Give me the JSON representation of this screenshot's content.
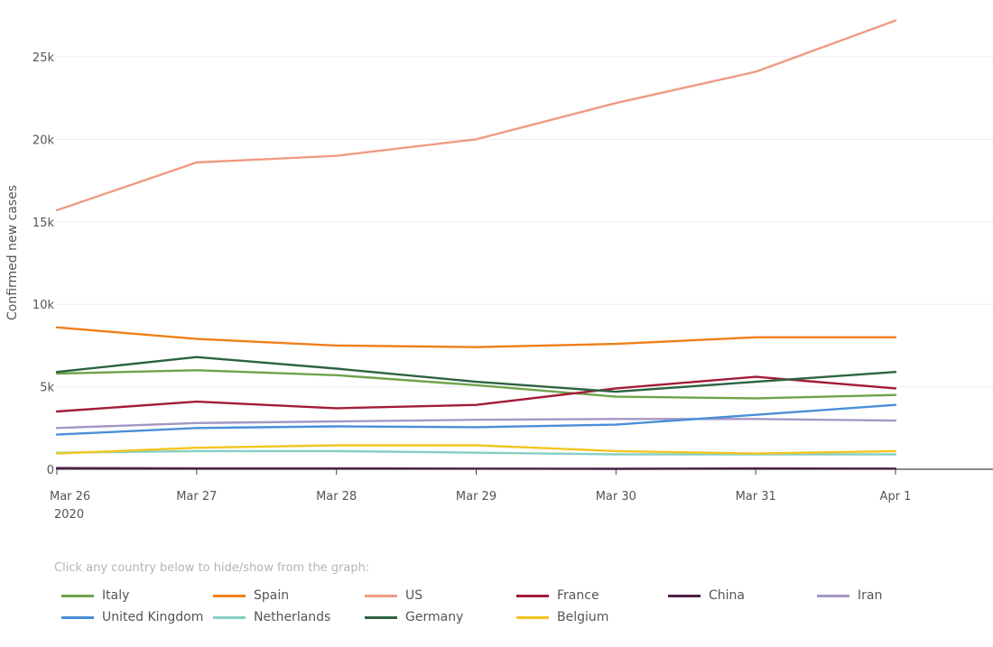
{
  "legend_hint": "Click any country below to hide/show from the graph:",
  "chart_data": {
    "type": "line",
    "title": "",
    "xlabel": "",
    "ylabel": "Confirmed new cases",
    "x": [
      "Mar 26",
      "Mar 27",
      "Mar 28",
      "Mar 29",
      "Mar 30",
      "Mar 31",
      "Apr 1"
    ],
    "x_year_label": "2020",
    "y_ticks": [
      0,
      5000,
      10000,
      15000,
      20000,
      25000
    ],
    "y_tick_labels": [
      "0",
      "5k",
      "10k",
      "15k",
      "20k",
      "25k"
    ],
    "ylim": [
      0,
      27500
    ],
    "grid": true,
    "legend_position": "bottom",
    "series": [
      {
        "name": "Italy",
        "color": "#6fa34a",
        "values": [
          5800,
          6000,
          5700,
          5100,
          4400,
          4300,
          4500
        ]
      },
      {
        "name": "Spain",
        "color": "#f07f1a",
        "values": [
          8600,
          7900,
          7500,
          7400,
          7600,
          8000,
          8000
        ]
      },
      {
        "name": "US",
        "color": "#ef9b82",
        "values": [
          15700,
          18600,
          19000,
          20000,
          22200,
          24100,
          27200
        ]
      },
      {
        "name": "France",
        "color": "#a31c38",
        "values": [
          3500,
          4100,
          3700,
          3900,
          4900,
          5600,
          4900
        ]
      },
      {
        "name": "China",
        "color": "#4b2147",
        "values": [
          70,
          50,
          50,
          40,
          30,
          50,
          40
        ]
      },
      {
        "name": "Iran",
        "color": "#a596c6",
        "values": [
          2500,
          2800,
          2900,
          3000,
          3050,
          3050,
          2950
        ]
      },
      {
        "name": "United Kingdom",
        "color": "#4a8fd8",
        "values": [
          2100,
          2500,
          2600,
          2550,
          2700,
          3300,
          3900
        ]
      },
      {
        "name": "Netherlands",
        "color": "#86cfc3",
        "values": [
          1000,
          1100,
          1100,
          1000,
          900,
          900,
          900
        ]
      },
      {
        "name": "Germany",
        "color": "#2d6341",
        "values": [
          5900,
          6800,
          6100,
          5300,
          4700,
          5300,
          5900
        ]
      },
      {
        "name": "Belgium",
        "color": "#f2c51f",
        "values": [
          950,
          1300,
          1450,
          1450,
          1100,
          950,
          1100
        ]
      }
    ]
  }
}
